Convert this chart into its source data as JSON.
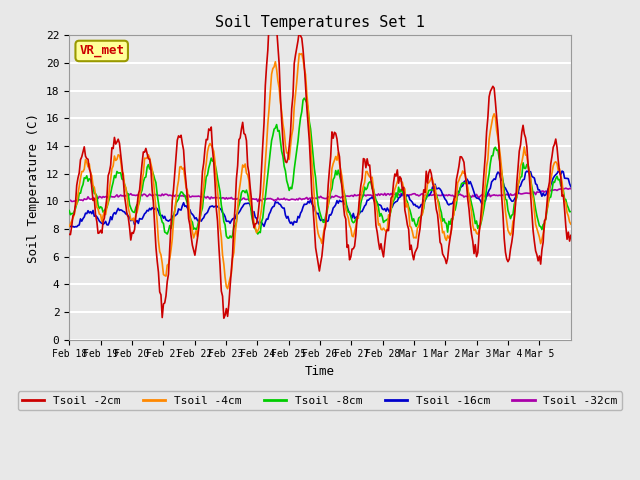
{
  "title": "Soil Temperatures Set 1",
  "xlabel": "Time",
  "ylabel": "Soil Temperature (C)",
  "ylim": [
    0,
    22
  ],
  "yticks": [
    0,
    2,
    4,
    6,
    8,
    10,
    12,
    14,
    16,
    18,
    20,
    22
  ],
  "plot_bg_color": "#e8e8e8",
  "grid_color": "#ffffff",
  "series_colors": {
    "Tsoil -2cm": "#cc0000",
    "Tsoil -4cm": "#ff8800",
    "Tsoil -8cm": "#00cc00",
    "Tsoil -16cm": "#0000cc",
    "Tsoil -32cm": "#aa00aa"
  },
  "annotation_text": "VR_met",
  "annotation_color": "#cc0000",
  "annotation_bg": "#ffff99",
  "annotation_border": "#999900",
  "x_tick_labels": [
    "Feb 18",
    "Feb 19",
    "Feb 20",
    "Feb 21",
    "Feb 22",
    "Feb 23",
    "Feb 24",
    "Feb 25",
    "Feb 26",
    "Feb 27",
    "Feb 28",
    "Mar 1",
    "Mar 2",
    "Mar 3",
    "Mar 4",
    "Mar 5"
  ],
  "n_points": 400,
  "font_family": "monospace"
}
